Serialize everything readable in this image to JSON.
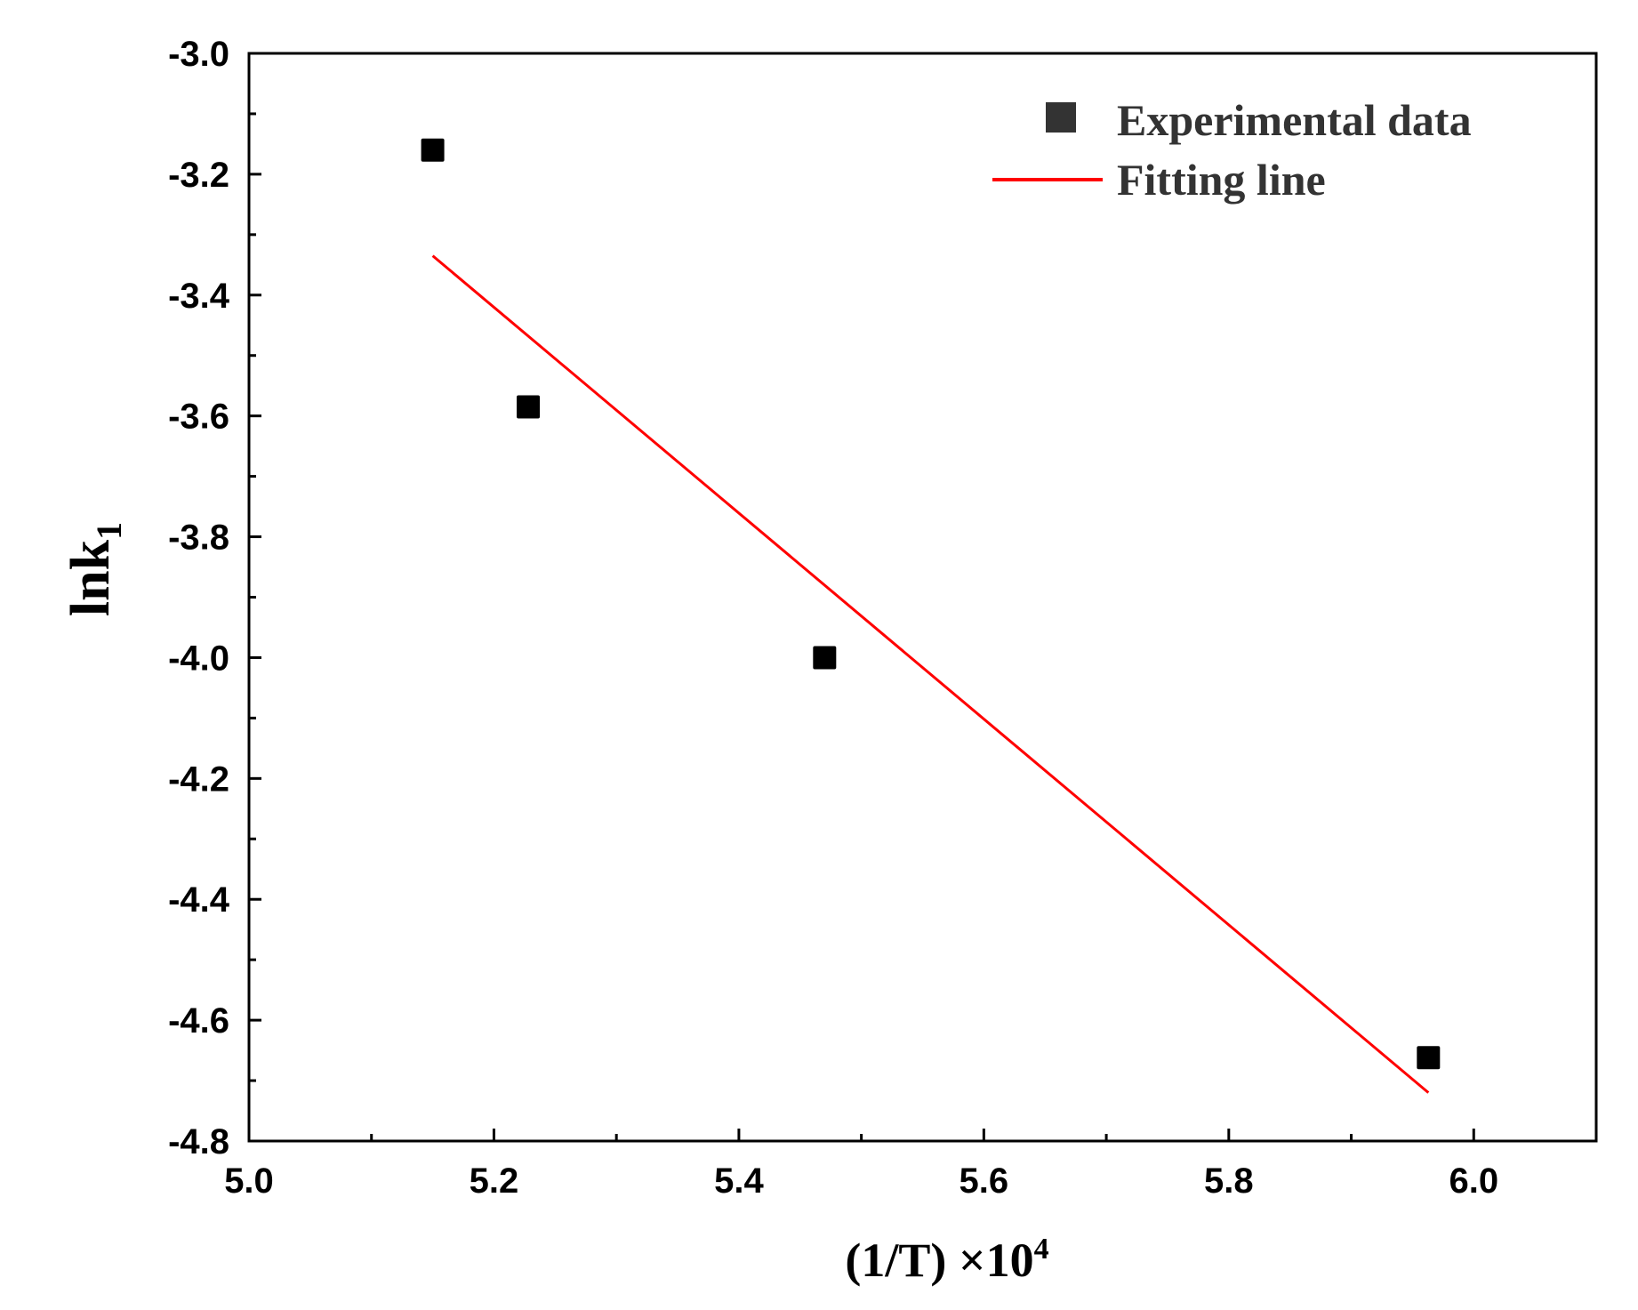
{
  "chart_data": {
    "type": "scatter",
    "title": "",
    "xlabel": "(1/T) ×10",
    "xlabel_superscript": "4",
    "ylabel": "lnk",
    "ylabel_subscript": "1",
    "xlim": [
      5.0,
      6.1
    ],
    "ylim": [
      -4.8,
      -3.0
    ],
    "xticks": [
      5.0,
      5.2,
      5.4,
      5.6,
      5.8,
      6.0
    ],
    "xtick_labels": [
      "5.0",
      "5.2",
      "5.4",
      "5.6",
      "5.8",
      "6.0"
    ],
    "yticks": [
      -3.0,
      -3.2,
      -3.4,
      -3.6,
      -3.8,
      -4.0,
      -4.2,
      -4.4,
      -4.6,
      -4.8
    ],
    "ytick_labels": [
      "-3.0",
      "-3.2",
      "-3.4",
      "-3.6",
      "-3.8",
      "-4.0",
      "-4.2",
      "-4.4",
      "-4.6",
      "-4.8"
    ],
    "grid": false,
    "legend_position": "top-right",
    "series": [
      {
        "name": "Experimental data",
        "kind": "scatter",
        "marker": "square",
        "color": "#000000",
        "x": [
          5.15,
          5.228,
          5.47,
          5.963
        ],
        "y": [
          -3.16,
          -3.585,
          -4.0,
          -4.662
        ]
      },
      {
        "name": "Fitting line",
        "kind": "line",
        "color": "#ff0000",
        "x": [
          5.15,
          5.963
        ],
        "y": [
          -3.335,
          -4.72
        ]
      }
    ]
  }
}
